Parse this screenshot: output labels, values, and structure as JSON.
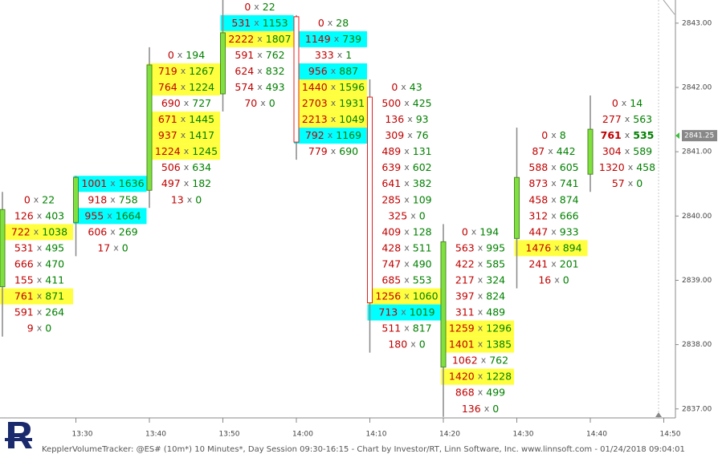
{
  "chart_data": {
    "type": "footprint",
    "separator": "x",
    "bid_color": "#c00000",
    "ask_color": "#008000",
    "up_color": "#80e040",
    "down_color": "#e02020",
    "ylim": [
      2836.86,
      2843.36
    ],
    "yticks": [
      {
        "value": 2837,
        "label": "2837.00"
      },
      {
        "value": 2838,
        "label": "2838.00"
      },
      {
        "value": 2839,
        "label": "2839.00"
      },
      {
        "value": 2840,
        "label": "2840.00"
      },
      {
        "value": 2841,
        "label": "2841.00"
      },
      {
        "value": 2842,
        "label": "2842.00"
      },
      {
        "value": 2843,
        "label": "2843.00"
      }
    ],
    "last_price": 2841.25,
    "xticks": [
      "13:30",
      "13:40",
      "13:50",
      "14:00",
      "14:10",
      "14:20",
      "14:30",
      "14:40",
      "14:50"
    ],
    "footer": "KepplerVolumeTracker: @ES# (10m*) 10 Minutes*, Day Session 09:30-16:15 - Chart by Investor/RT, Linn Software, Inc. www.linnsoft.com - 01/24/2018 09:04:01",
    "bars": [
      {
        "open": 2839.0,
        "high": 2840.25,
        "low": 2838.25,
        "close": 2840.0,
        "levels": [
          {
            "price": 2840.25,
            "bid": 0,
            "ask": 22
          },
          {
            "price": 2840.0,
            "bid": 126,
            "ask": 403
          },
          {
            "price": 2839.75,
            "bid": 722,
            "ask": 1038,
            "highlight": "#ffff40"
          },
          {
            "price": 2839.5,
            "bid": 531,
            "ask": 495
          },
          {
            "price": 2839.25,
            "bid": 666,
            "ask": 470
          },
          {
            "price": 2839.0,
            "bid": 155,
            "ask": 411
          },
          {
            "price": 2838.75,
            "bid": 761,
            "ask": 871,
            "highlight": "#ffff40"
          },
          {
            "price": 2838.5,
            "bid": 591,
            "ask": 264
          },
          {
            "price": 2838.25,
            "bid": 9,
            "ask": 0
          }
        ]
      },
      {
        "open": 2840.0,
        "high": 2840.5,
        "low": 2839.5,
        "close": 2840.5,
        "levels": [
          {
            "price": 2840.5,
            "bid": 1001,
            "ask": 1636,
            "highlight": "#00ffff"
          },
          {
            "price": 2840.25,
            "bid": 918,
            "ask": 758
          },
          {
            "price": 2840.0,
            "bid": 955,
            "ask": 1664,
            "highlight": "#00ffff"
          },
          {
            "price": 2839.75,
            "bid": 606,
            "ask": 269
          },
          {
            "price": 2839.5,
            "bid": 17,
            "ask": 0
          }
        ]
      },
      {
        "open": 2840.5,
        "high": 2842.5,
        "low": 2840.25,
        "close": 2842.25,
        "levels": [
          {
            "price": 2842.5,
            "bid": 0,
            "ask": 194
          },
          {
            "price": 2842.25,
            "bid": 719,
            "ask": 1267,
            "highlight": "#ffff40"
          },
          {
            "price": 2842.0,
            "bid": 764,
            "ask": 1224,
            "highlight": "#ffff40"
          },
          {
            "price": 2841.75,
            "bid": 690,
            "ask": 727
          },
          {
            "price": 2841.5,
            "bid": 671,
            "ask": 1445,
            "highlight": "#ffff40"
          },
          {
            "price": 2841.25,
            "bid": 937,
            "ask": 1417,
            "highlight": "#ffff40"
          },
          {
            "price": 2841.0,
            "bid": 1224,
            "ask": 1245,
            "highlight": "#ffff40"
          },
          {
            "price": 2840.75,
            "bid": 506,
            "ask": 634
          },
          {
            "price": 2840.5,
            "bid": 497,
            "ask": 182
          },
          {
            "price": 2840.25,
            "bid": 13,
            "ask": 0
          }
        ]
      },
      {
        "open": 2842.0,
        "high": 2843.25,
        "low": 2841.75,
        "close": 2842.75,
        "levels": [
          {
            "price": 2843.25,
            "bid": 0,
            "ask": 22
          },
          {
            "price": 2843.0,
            "bid": 531,
            "ask": 1153,
            "highlight": "#00ffff"
          },
          {
            "price": 2842.75,
            "bid": 2222,
            "ask": 1807,
            "highlight": "#ffff40"
          },
          {
            "price": 2842.5,
            "bid": 591,
            "ask": 762
          },
          {
            "price": 2842.25,
            "bid": 624,
            "ask": 832
          },
          {
            "price": 2842.0,
            "bid": 574,
            "ask": 493
          },
          {
            "price": 2841.75,
            "bid": 70,
            "ask": 0
          }
        ]
      },
      {
        "open": 2843.0,
        "high": 2843.0,
        "low": 2841.0,
        "close": 2841.25,
        "levels": [
          {
            "price": 2843.0,
            "bid": 0,
            "ask": 28
          },
          {
            "price": 2842.75,
            "bid": 1149,
            "ask": 739,
            "highlight": "#00ffff"
          },
          {
            "price": 2842.5,
            "bid": 333,
            "ask": 1
          },
          {
            "price": 2842.25,
            "bid": 956,
            "ask": 887,
            "highlight": "#00ffff"
          },
          {
            "price": 2842.0,
            "bid": 1440,
            "ask": 1596,
            "highlight": "#ffff40"
          },
          {
            "price": 2841.75,
            "bid": 2703,
            "ask": 1931,
            "highlight": "#ffff40"
          },
          {
            "price": 2841.5,
            "bid": 2213,
            "ask": 1049,
            "highlight": "#ffff40"
          },
          {
            "price": 2841.25,
            "bid": 792,
            "ask": 1169,
            "highlight": "#00ffff"
          },
          {
            "price": 2841.0,
            "bid": 779,
            "ask": 690
          }
        ]
      },
      {
        "open": 2841.75,
        "high": 2842.0,
        "low": 2838.0,
        "close": 2838.75,
        "levels": [
          {
            "price": 2842.0,
            "bid": 0,
            "ask": 43
          },
          {
            "price": 2841.75,
            "bid": 500,
            "ask": 425
          },
          {
            "price": 2841.5,
            "bid": 136,
            "ask": 93
          },
          {
            "price": 2841.25,
            "bid": 309,
            "ask": 76
          },
          {
            "price": 2841.0,
            "bid": 489,
            "ask": 131
          },
          {
            "price": 2840.75,
            "bid": 639,
            "ask": 602
          },
          {
            "price": 2840.5,
            "bid": 641,
            "ask": 382
          },
          {
            "price": 2840.25,
            "bid": 285,
            "ask": 109
          },
          {
            "price": 2840.0,
            "bid": 325,
            "ask": 0
          },
          {
            "price": 2839.75,
            "bid": 409,
            "ask": 128
          },
          {
            "price": 2839.5,
            "bid": 428,
            "ask": 511
          },
          {
            "price": 2839.25,
            "bid": 747,
            "ask": 490
          },
          {
            "price": 2839.0,
            "bid": 685,
            "ask": 553
          },
          {
            "price": 2838.75,
            "bid": 1256,
            "ask": 1060,
            "highlight": "#ffff40"
          },
          {
            "price": 2838.5,
            "bid": 713,
            "ask": 1019,
            "highlight": "#00ffff"
          },
          {
            "price": 2838.25,
            "bid": 511,
            "ask": 817
          },
          {
            "price": 2838.0,
            "bid": 180,
            "ask": 0
          }
        ]
      },
      {
        "open": 2837.75,
        "high": 2839.75,
        "low": 2837.0,
        "close": 2839.5,
        "levels": [
          {
            "price": 2839.75,
            "bid": 0,
            "ask": 194
          },
          {
            "price": 2839.5,
            "bid": 563,
            "ask": 995
          },
          {
            "price": 2839.25,
            "bid": 422,
            "ask": 585
          },
          {
            "price": 2839.0,
            "bid": 217,
            "ask": 324
          },
          {
            "price": 2838.75,
            "bid": 397,
            "ask": 824
          },
          {
            "price": 2838.5,
            "bid": 311,
            "ask": 489
          },
          {
            "price": 2838.25,
            "bid": 1259,
            "ask": 1296,
            "highlight": "#ffff40"
          },
          {
            "price": 2838.0,
            "bid": 1401,
            "ask": 1385,
            "highlight": "#ffff40"
          },
          {
            "price": 2837.75,
            "bid": 1062,
            "ask": 762
          },
          {
            "price": 2837.5,
            "bid": 1420,
            "ask": 1228,
            "highlight": "#ffff40"
          },
          {
            "price": 2837.25,
            "bid": 868,
            "ask": 499
          },
          {
            "price": 2837.0,
            "bid": 136,
            "ask": 0
          }
        ]
      },
      {
        "open": 2839.75,
        "high": 2841.25,
        "low": 2839.0,
        "close": 2840.5,
        "levels": [
          {
            "price": 2841.25,
            "bid": 0,
            "ask": 8
          },
          {
            "price": 2841.0,
            "bid": 87,
            "ask": 442
          },
          {
            "price": 2840.75,
            "bid": 588,
            "ask": 605
          },
          {
            "price": 2840.5,
            "bid": 873,
            "ask": 741
          },
          {
            "price": 2840.25,
            "bid": 458,
            "ask": 874
          },
          {
            "price": 2840.0,
            "bid": 312,
            "ask": 666
          },
          {
            "price": 2839.75,
            "bid": 447,
            "ask": 933
          },
          {
            "price": 2839.5,
            "bid": 1476,
            "ask": 894,
            "highlight": "#ffff40"
          },
          {
            "price": 2839.25,
            "bid": 241,
            "ask": 201
          },
          {
            "price": 2839.0,
            "bid": 16,
            "ask": 0
          }
        ]
      },
      {
        "open": 2840.75,
        "high": 2841.75,
        "low": 2840.5,
        "close": 2841.25,
        "levels": [
          {
            "price": 2841.75,
            "bid": 0,
            "ask": 14
          },
          {
            "price": 2841.5,
            "bid": 277,
            "ask": 563
          },
          {
            "price": 2841.25,
            "bid": 761,
            "ask": 535
          },
          {
            "price": 2841.0,
            "bid": 304,
            "ask": 589
          },
          {
            "price": 2840.75,
            "bid": 1320,
            "ask": 458
          },
          {
            "price": 2840.5,
            "bid": 57,
            "ask": 0
          }
        ]
      }
    ]
  }
}
